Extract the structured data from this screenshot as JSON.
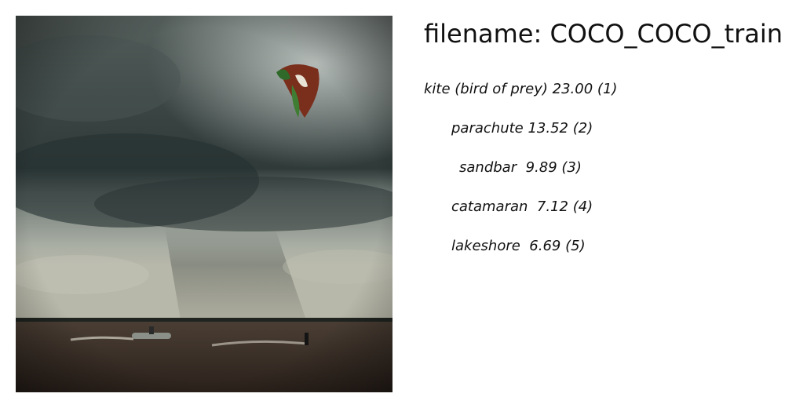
{
  "title_prefix": "filename: ",
  "filename": "COCO_COCO_train",
  "predictions": [
    {
      "label": "kite (bird of prey)",
      "score": "23.00",
      "rank": "(1)"
    },
    {
      "label": "parachute",
      "score": "13.52",
      "rank": "(2)"
    },
    {
      "label": "sandbar",
      "score": " 9.89",
      "rank": "(3)"
    },
    {
      "label": "catamaran",
      "score": " 7.12",
      "rank": "(4)"
    },
    {
      "label": "lakeshore",
      "score": " 6.69",
      "rank": "(5)"
    }
  ]
}
